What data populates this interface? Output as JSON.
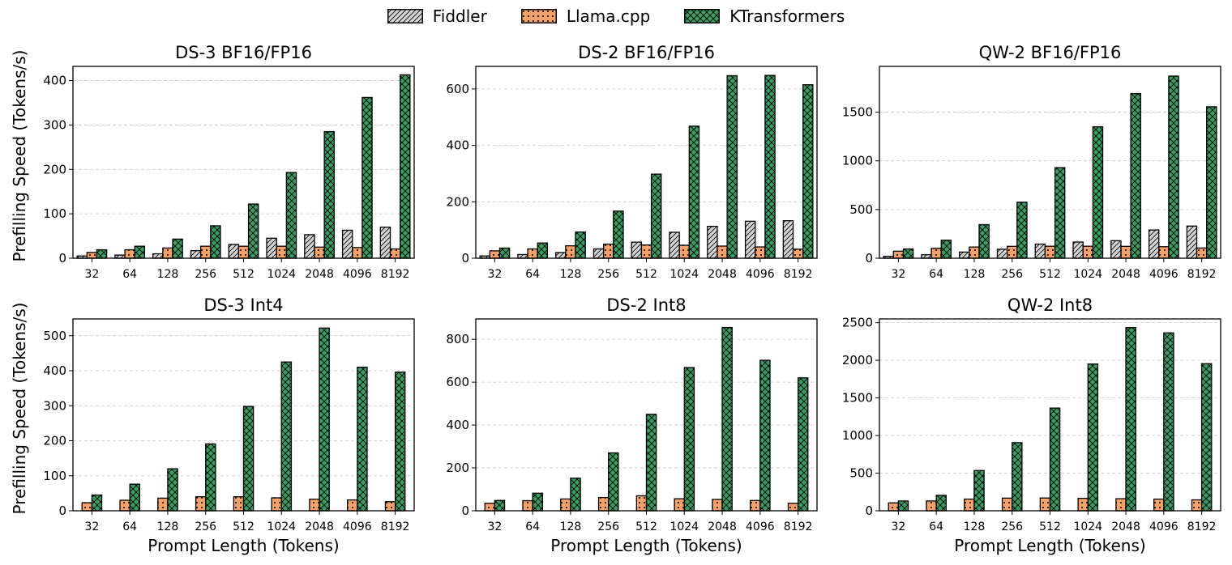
{
  "legend": [
    {
      "name": "Fiddler",
      "color": "#d3d3d3",
      "pattern": "diagonal-hatch"
    },
    {
      "name": "Llama.cpp",
      "color": "#f4a26b",
      "pattern": "dots"
    },
    {
      "name": "KTransformers",
      "color": "#3a9e63",
      "pattern": "cross-hatch"
    }
  ],
  "chart_data": [
    {
      "type": "bar",
      "title": "DS-3 BF16/FP16",
      "xlabel": "",
      "ylabel": "Prefilling Speed (Tokens/s)",
      "categories": [
        "32",
        "64",
        "128",
        "256",
        "512",
        "1024",
        "2048",
        "4096",
        "8192"
      ],
      "ylim": [
        0,
        432
      ],
      "yticks": [
        0,
        100,
        200,
        300,
        400
      ],
      "series": [
        {
          "name": "Fiddler",
          "values": [
            5,
            7,
            10,
            17,
            31,
            45,
            53,
            63,
            70
          ]
        },
        {
          "name": "Llama.cpp",
          "values": [
            13,
            19,
            23,
            27,
            27,
            27,
            25,
            24,
            21
          ]
        },
        {
          "name": "KTransformers",
          "values": [
            19,
            27,
            43,
            73,
            122,
            193,
            285,
            362,
            413
          ]
        }
      ]
    },
    {
      "type": "bar",
      "title": "DS-2 BF16/FP16",
      "xlabel": "",
      "ylabel": "",
      "categories": [
        "32",
        "64",
        "128",
        "256",
        "512",
        "1024",
        "2048",
        "4096",
        "8192"
      ],
      "ylim": [
        0,
        680
      ],
      "yticks": [
        0,
        200,
        400,
        600
      ],
      "series": [
        {
          "name": "Fiddler",
          "values": [
            8,
            13,
            20,
            33,
            57,
            92,
            113,
            131,
            133
          ]
        },
        {
          "name": "Llama.cpp",
          "values": [
            26,
            33,
            44,
            50,
            47,
            46,
            43,
            40,
            32
          ]
        },
        {
          "name": "KTransformers",
          "values": [
            36,
            54,
            93,
            167,
            298,
            468,
            647,
            648,
            615
          ]
        }
      ]
    },
    {
      "type": "bar",
      "title": "QW-2 BF16/FP16",
      "xlabel": "",
      "ylabel": "",
      "categories": [
        "32",
        "64",
        "128",
        "256",
        "512",
        "1024",
        "2048",
        "4096",
        "8192"
      ],
      "ylim": [
        0,
        1970
      ],
      "yticks": [
        0,
        500,
        1000,
        1500
      ],
      "series": [
        {
          "name": "Fiddler",
          "values": [
            20,
            36,
            63,
            92,
            145,
            166,
            180,
            290,
            330
          ]
        },
        {
          "name": "Llama.cpp",
          "values": [
            72,
            102,
            115,
            122,
            123,
            123,
            122,
            118,
            105
          ]
        },
        {
          "name": "KTransformers",
          "values": [
            95,
            185,
            345,
            575,
            930,
            1350,
            1690,
            1870,
            1555
          ]
        }
      ]
    },
    {
      "type": "bar",
      "title": "DS-3 Int4",
      "xlabel": "Prompt Length (Tokens)",
      "ylabel": "Prefilling Speed (Tokens/s)",
      "categories": [
        "32",
        "64",
        "128",
        "256",
        "512",
        "1024",
        "2048",
        "4096",
        "8192"
      ],
      "ylim": [
        0,
        548
      ],
      "yticks": [
        0,
        100,
        200,
        300,
        400,
        500
      ],
      "series": [
        {
          "name": "Llama.cpp",
          "values": [
            23,
            30,
            36,
            40,
            40,
            37,
            33,
            31,
            26
          ]
        },
        {
          "name": "KTransformers",
          "values": [
            45,
            76,
            120,
            191,
            298,
            425,
            522,
            410,
            396
          ]
        }
      ]
    },
    {
      "type": "bar",
      "title": "DS-2 Int8",
      "xlabel": "Prompt Length (Tokens)",
      "ylabel": "",
      "categories": [
        "32",
        "64",
        "128",
        "256",
        "512",
        "1024",
        "2048",
        "4096",
        "8192"
      ],
      "ylim": [
        0,
        895
      ],
      "yticks": [
        0,
        200,
        400,
        600,
        800
      ],
      "series": [
        {
          "name": "Llama.cpp",
          "values": [
            35,
            47,
            55,
            62,
            70,
            56,
            53,
            48,
            35
          ]
        },
        {
          "name": "KTransformers",
          "values": [
            48,
            82,
            152,
            270,
            450,
            668,
            855,
            702,
            620
          ]
        }
      ]
    },
    {
      "type": "bar",
      "title": "QW-2 Int8",
      "xlabel": "Prompt Length (Tokens)",
      "ylabel": "",
      "categories": [
        "32",
        "64",
        "128",
        "256",
        "512",
        "1024",
        "2048",
        "4096",
        "8192"
      ],
      "ylim": [
        0,
        2550
      ],
      "yticks": [
        0,
        500,
        1000,
        1500,
        2000,
        2500
      ],
      "series": [
        {
          "name": "Llama.cpp",
          "values": [
            105,
            130,
            155,
            168,
            170,
            165,
            160,
            155,
            145
          ]
        },
        {
          "name": "KTransformers",
          "values": [
            130,
            205,
            535,
            905,
            1365,
            1950,
            2435,
            2365,
            1955
          ]
        }
      ]
    }
  ]
}
